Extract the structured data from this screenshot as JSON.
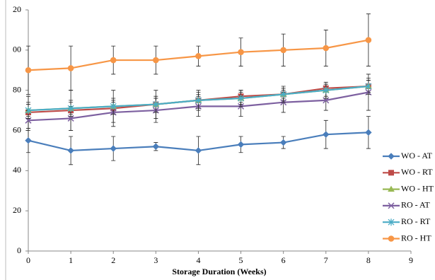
{
  "chart_data": {
    "type": "line",
    "xlabel": "Storage Duration (Weeks)",
    "x": [
      0,
      1,
      2,
      3,
      4,
      5,
      6,
      7,
      8
    ],
    "xlim": [
      0,
      9
    ],
    "xticks": [
      0,
      1,
      2,
      3,
      4,
      5,
      6,
      7,
      8,
      9
    ],
    "ylim": [
      0,
      120
    ],
    "yticks": [
      0,
      20,
      40,
      60,
      80,
      {
        "value": 100,
        "label": "00"
      },
      {
        "value": 120,
        "label": "20"
      }
    ],
    "legend": "right",
    "series": [
      {
        "name": "WO - AT",
        "color": "#4a7ebb",
        "marker": "diamond",
        "values": [
          55,
          50,
          51,
          52,
          50,
          53,
          54,
          58,
          59
        ],
        "errors": [
          6,
          7,
          6,
          2,
          7,
          4,
          3,
          7,
          8
        ]
      },
      {
        "name": "WO - RT",
        "color": "#be4b48",
        "marker": "square",
        "values": [
          69,
          70,
          71,
          73,
          75,
          77,
          78,
          81,
          82
        ],
        "errors": [
          8,
          10,
          9,
          7,
          5,
          3,
          2,
          2,
          3
        ]
      },
      {
        "name": "WO - HT",
        "color": "#98b954",
        "marker": "triangle",
        "values": [
          70,
          71,
          72,
          73,
          75,
          76,
          78,
          80,
          82
        ],
        "errors": [
          3,
          3,
          3,
          3,
          3,
          3,
          3,
          3,
          3
        ]
      },
      {
        "name": "RO - AT",
        "color": "#7d60a0",
        "marker": "x",
        "values": [
          65,
          66,
          69,
          70,
          72,
          72,
          74,
          75,
          79
        ],
        "errors": [
          5,
          6,
          5,
          6,
          5,
          5,
          5,
          5,
          9
        ]
      },
      {
        "name": "RO - RT",
        "color": "#4bacc6",
        "marker": "star",
        "values": [
          70,
          71,
          72,
          73,
          75,
          76,
          78,
          80,
          82
        ],
        "errors": [
          4,
          4,
          4,
          4,
          4,
          4,
          4,
          4,
          4
        ]
      },
      {
        "name": "RO - HT",
        "color": "#f79646",
        "marker": "circle",
        "values": [
          90,
          91,
          95,
          95,
          97,
          99,
          100,
          101,
          105
        ],
        "errors": [
          12,
          11,
          7,
          7,
          5,
          7,
          8,
          9,
          13
        ]
      }
    ]
  }
}
